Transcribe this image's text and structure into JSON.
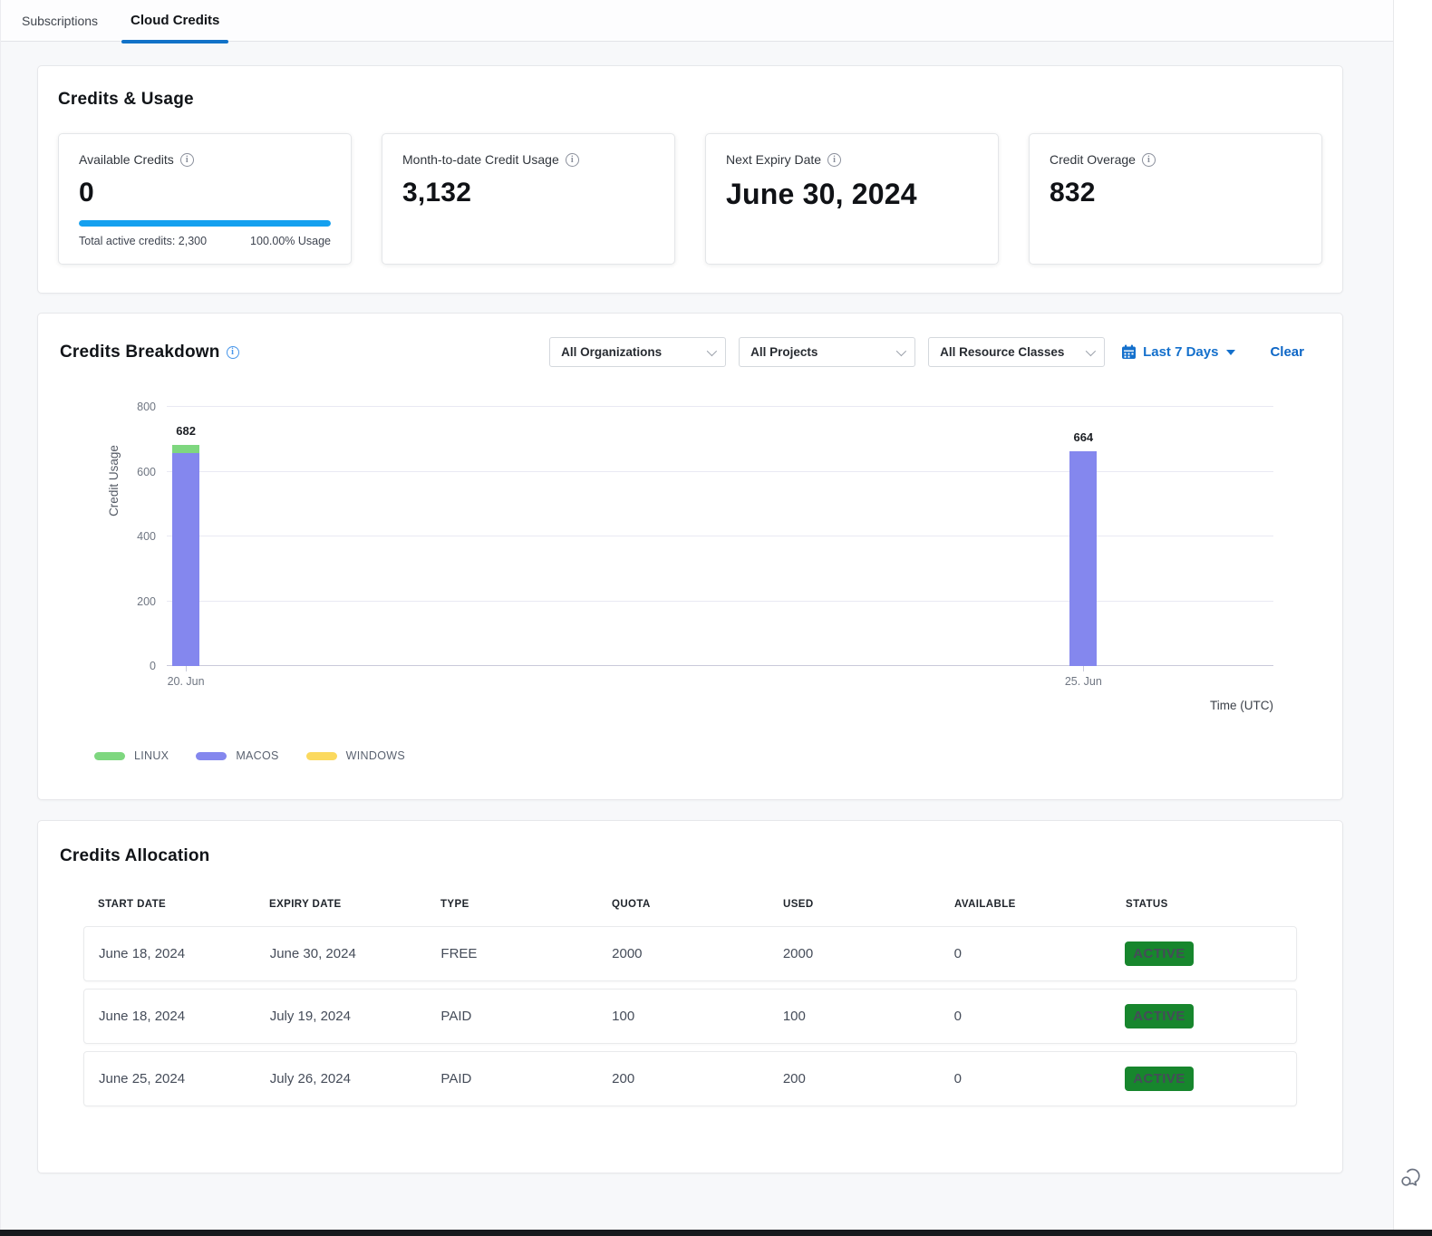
{
  "tabs": {
    "subscriptions": "Subscriptions",
    "cloud_credits": "Cloud Credits"
  },
  "credits_usage": {
    "title": "Credits & Usage",
    "cards": [
      {
        "label": "Available Credits",
        "value": "0",
        "footer_left": "Total active credits: 2,300",
        "footer_right": "100.00% Usage",
        "progress_pct": 100
      },
      {
        "label": "Month-to-date Credit Usage",
        "value": "3,132"
      },
      {
        "label": "Next Expiry Date",
        "value": "June 30, 2024"
      },
      {
        "label": "Credit Overage",
        "value": "832"
      }
    ]
  },
  "credits_breakdown": {
    "title": "Credits Breakdown",
    "filters": {
      "organizations": "All Organizations",
      "projects": "All Projects",
      "resource_classes": "All Resource Classes",
      "date_range": "Last 7 Days",
      "clear": "Clear"
    }
  },
  "chart_data": {
    "type": "bar",
    "stacked": true,
    "categories": [
      "20. Jun",
      "25. Jun"
    ],
    "series": [
      {
        "name": "LINUX",
        "color": "#7ed77f",
        "values": [
          26,
          2
        ]
      },
      {
        "name": "MACOS",
        "color": "#8487ee",
        "values": [
          656,
          662
        ]
      },
      {
        "name": "WINDOWS",
        "color": "#fbd95e",
        "values": [
          0,
          0
        ]
      }
    ],
    "totals": [
      682,
      664
    ],
    "xlabel": "Time (UTC)",
    "ylabel": "Credit Usage",
    "ylim": [
      0,
      800
    ],
    "yticks": [
      0,
      200,
      400,
      600,
      800
    ],
    "grid": true,
    "legend_position": "bottom-left",
    "bar_left_pct": [
      0.5,
      81.6
    ],
    "stack_render_order": [
      1,
      0,
      2
    ]
  },
  "credits_allocation": {
    "title": "Credits Allocation",
    "columns": [
      "START DATE",
      "EXPIRY DATE",
      "TYPE",
      "QUOTA",
      "USED",
      "AVAILABLE",
      "STATUS"
    ],
    "rows": [
      {
        "start": "June 18, 2024",
        "expiry": "June 30, 2024",
        "type": "FREE",
        "quota": "2000",
        "used": "2000",
        "available": "0",
        "status": "ACTIVE"
      },
      {
        "start": "June 18, 2024",
        "expiry": "July 19, 2024",
        "type": "PAID",
        "quota": "100",
        "used": "100",
        "available": "0",
        "status": "ACTIVE"
      },
      {
        "start": "June 25, 2024",
        "expiry": "July 26, 2024",
        "type": "PAID",
        "quota": "200",
        "used": "200",
        "available": "0",
        "status": "ACTIVE"
      }
    ]
  },
  "colors": {
    "accent_blue": "#1172c8",
    "progress_blue": "#14a0ef",
    "badge_green": "#17862d",
    "linux_green": "#7ed77f",
    "macos_purple": "#8487ee",
    "windows_yellow": "#fbd95e"
  }
}
